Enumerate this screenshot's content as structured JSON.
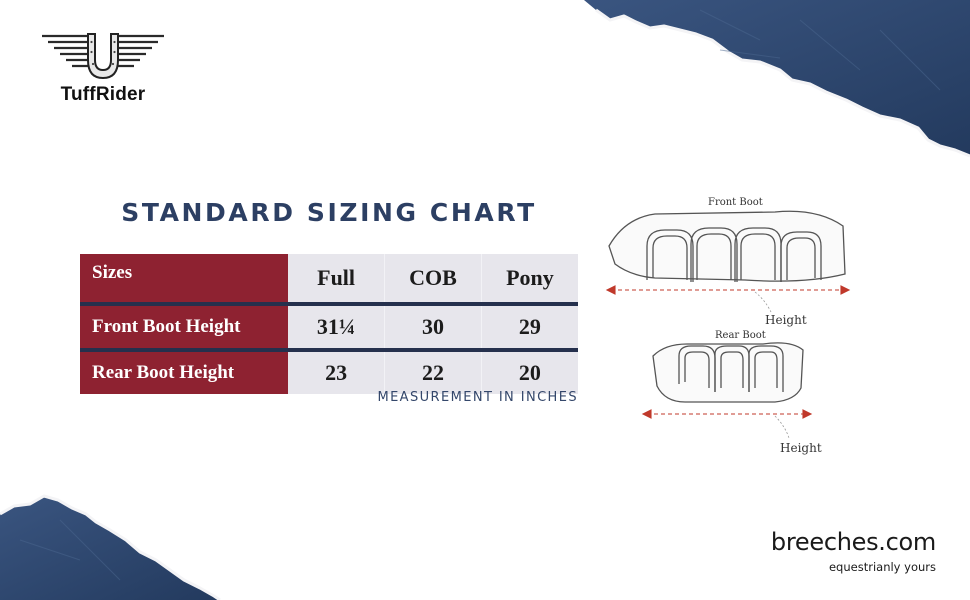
{
  "brand": {
    "logo_text": "TuffRider",
    "site_name": "breeches.com",
    "tagline": "equestrianly yours"
  },
  "chart": {
    "title": "STANDARD SIZING CHART",
    "note": "MEASUREMENT IN INCHES",
    "header": [
      "Sizes",
      "Full",
      "COB",
      "Pony"
    ],
    "rows": [
      {
        "label": "Front Boot Height",
        "values": [
          "31¼",
          "30",
          "29"
        ]
      },
      {
        "label": "Rear Boot Height",
        "values": [
          "23",
          "22",
          "20"
        ]
      }
    ]
  },
  "diagram": {
    "front_label": "Front Boot",
    "rear_label": "Rear Boot",
    "height_label_front": "Height",
    "height_label_rear": "Height"
  },
  "colors": {
    "accent_red": "#8e2231",
    "navy": "#2c3f63",
    "torn_paper": "#2f4a72",
    "cell_grey": "#e7e6ec"
  }
}
